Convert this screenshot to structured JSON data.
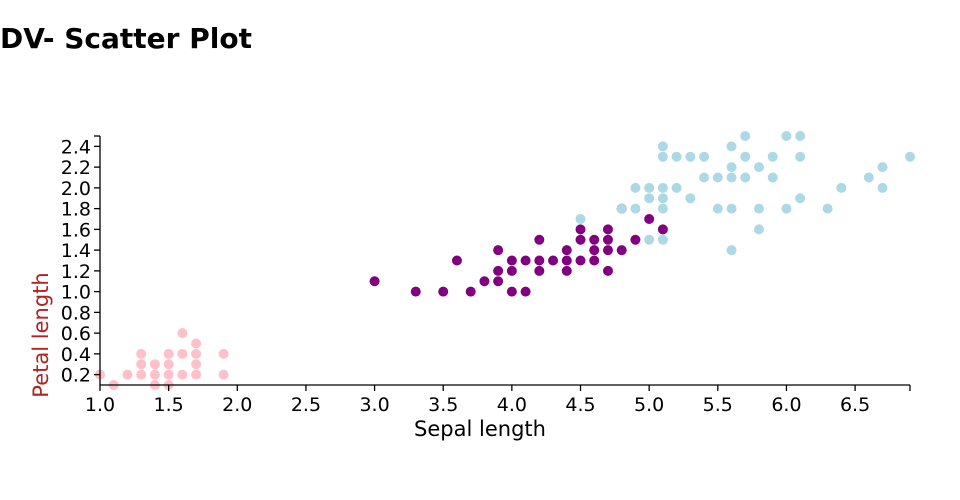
{
  "page": {
    "title": "DV- Scatter Plot"
  },
  "chart_data": {
    "type": "scatter",
    "title": "",
    "xlabel": "Sepal length",
    "ylabel": "Petal length",
    "xlim": [
      1.0,
      6.9
    ],
    "ylim": [
      0.1,
      2.5
    ],
    "x_ticks": [
      "1.0",
      "1.5",
      "2.0",
      "2.5",
      "3.0",
      "3.5",
      "4.0",
      "4.5",
      "5.0",
      "5.5",
      "6.0",
      "6.5"
    ],
    "y_ticks": [
      "0.2",
      "0.4",
      "0.6",
      "0.8",
      "1.0",
      "1.2",
      "1.4",
      "1.6",
      "1.8",
      "2.0",
      "2.2",
      "2.4"
    ],
    "grid": false,
    "colors": {
      "xlabel": "#000000",
      "ylabel": "#b22222",
      "axis": "#000000"
    },
    "series": [
      {
        "color": "#ffc0cb",
        "points": [
          [
            1.0,
            0.2
          ],
          [
            1.1,
            0.1
          ],
          [
            1.2,
            0.2
          ],
          [
            1.3,
            0.2
          ],
          [
            1.3,
            0.3
          ],
          [
            1.3,
            0.4
          ],
          [
            1.4,
            0.1
          ],
          [
            1.4,
            0.2
          ],
          [
            1.4,
            0.3
          ],
          [
            1.5,
            0.1
          ],
          [
            1.5,
            0.2
          ],
          [
            1.5,
            0.3
          ],
          [
            1.5,
            0.4
          ],
          [
            1.6,
            0.2
          ],
          [
            1.6,
            0.4
          ],
          [
            1.6,
            0.6
          ],
          [
            1.7,
            0.2
          ],
          [
            1.7,
            0.3
          ],
          [
            1.7,
            0.4
          ],
          [
            1.7,
            0.5
          ],
          [
            1.9,
            0.2
          ],
          [
            1.9,
            0.4
          ]
        ]
      },
      {
        "color": "#800080",
        "points": [
          [
            3.0,
            1.1
          ],
          [
            3.3,
            1.0
          ],
          [
            3.5,
            1.0
          ],
          [
            3.6,
            1.3
          ],
          [
            3.7,
            1.0
          ],
          [
            3.8,
            1.1
          ],
          [
            3.9,
            1.1
          ],
          [
            3.9,
            1.2
          ],
          [
            3.9,
            1.4
          ],
          [
            4.0,
            1.0
          ],
          [
            4.0,
            1.2
          ],
          [
            4.0,
            1.3
          ],
          [
            4.1,
            1.0
          ],
          [
            4.1,
            1.3
          ],
          [
            4.2,
            1.2
          ],
          [
            4.2,
            1.3
          ],
          [
            4.2,
            1.5
          ],
          [
            4.3,
            1.3
          ],
          [
            4.4,
            1.2
          ],
          [
            4.4,
            1.3
          ],
          [
            4.4,
            1.4
          ],
          [
            4.5,
            1.3
          ],
          [
            4.5,
            1.5
          ],
          [
            4.5,
            1.6
          ],
          [
            4.6,
            1.3
          ],
          [
            4.6,
            1.4
          ],
          [
            4.6,
            1.5
          ],
          [
            4.7,
            1.2
          ],
          [
            4.7,
            1.4
          ],
          [
            4.7,
            1.5
          ],
          [
            4.7,
            1.6
          ],
          [
            4.8,
            1.4
          ],
          [
            4.8,
            1.8
          ],
          [
            4.9,
            1.5
          ],
          [
            5.0,
            1.7
          ],
          [
            5.1,
            1.6
          ]
        ]
      },
      {
        "color": "#add8e6",
        "points": [
          [
            4.5,
            1.7
          ],
          [
            4.8,
            1.8
          ],
          [
            4.9,
            1.8
          ],
          [
            4.9,
            2.0
          ],
          [
            5.0,
            1.5
          ],
          [
            5.0,
            1.9
          ],
          [
            5.0,
            2.0
          ],
          [
            5.1,
            1.5
          ],
          [
            5.1,
            1.8
          ],
          [
            5.1,
            1.9
          ],
          [
            5.1,
            2.0
          ],
          [
            5.1,
            2.3
          ],
          [
            5.1,
            2.4
          ],
          [
            5.2,
            2.0
          ],
          [
            5.2,
            2.3
          ],
          [
            5.3,
            1.9
          ],
          [
            5.3,
            2.3
          ],
          [
            5.4,
            2.1
          ],
          [
            5.4,
            2.3
          ],
          [
            5.5,
            1.8
          ],
          [
            5.5,
            2.1
          ],
          [
            5.6,
            1.4
          ],
          [
            5.6,
            1.8
          ],
          [
            5.6,
            2.1
          ],
          [
            5.6,
            2.2
          ],
          [
            5.6,
            2.4
          ],
          [
            5.7,
            2.1
          ],
          [
            5.7,
            2.3
          ],
          [
            5.7,
            2.5
          ],
          [
            5.8,
            1.6
          ],
          [
            5.8,
            1.8
          ],
          [
            5.8,
            2.2
          ],
          [
            5.9,
            2.1
          ],
          [
            5.9,
            2.3
          ],
          [
            6.0,
            1.8
          ],
          [
            6.0,
            2.5
          ],
          [
            6.1,
            1.9
          ],
          [
            6.1,
            2.3
          ],
          [
            6.1,
            2.5
          ],
          [
            6.3,
            1.8
          ],
          [
            6.4,
            2.0
          ],
          [
            6.6,
            2.1
          ],
          [
            6.7,
            2.0
          ],
          [
            6.7,
            2.2
          ],
          [
            6.9,
            2.3
          ]
        ]
      }
    ]
  }
}
